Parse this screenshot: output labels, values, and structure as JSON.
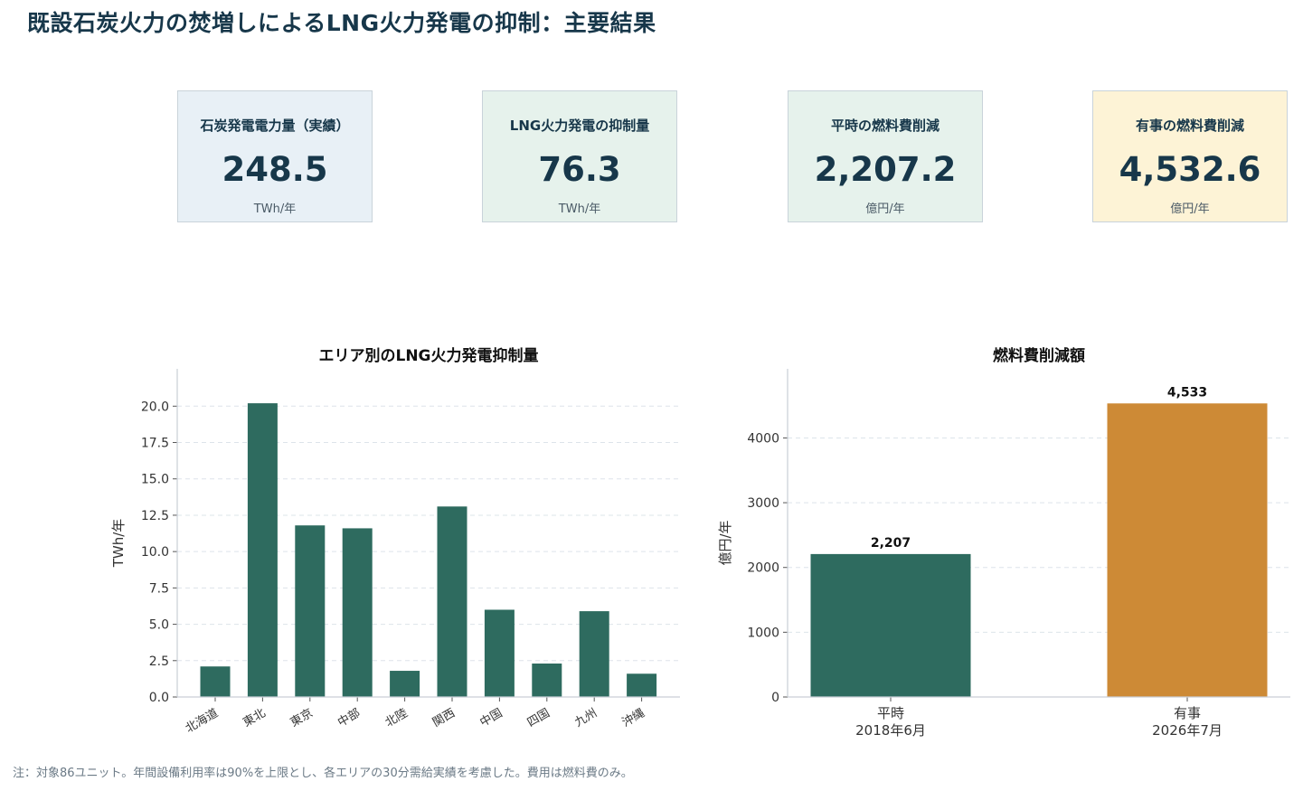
{
  "title": "既設石炭火力の焚増しによるLNG火力発電の抑制：主要結果",
  "cards": [
    {
      "label": "石炭発電電力量（実績）",
      "value": "248.5",
      "unit": "TWh/年",
      "bg": "#e8f0f6"
    },
    {
      "label": "LNG火力発電の抑制量",
      "value": "76.3",
      "unit": "TWh/年",
      "bg": "#e6f2ec"
    },
    {
      "label": "平時の燃料費削減",
      "value": "2,207.2",
      "unit": "億円/年",
      "bg": "#e6f2ec"
    },
    {
      "label": "有事の燃料費削減",
      "value": "4,532.6",
      "unit": "億円/年",
      "bg": "#fdf3d6"
    }
  ],
  "chart_data": [
    {
      "type": "bar",
      "title": "エリア別のLNG火力発電抑制量",
      "ylabel": "TWh/年",
      "xlabel": "",
      "categories": [
        "北海道",
        "東北",
        "東京",
        "中部",
        "北陸",
        "関西",
        "中国",
        "四国",
        "九州",
        "沖縄"
      ],
      "values": [
        2.1,
        20.2,
        11.8,
        11.6,
        1.8,
        13.1,
        6.0,
        2.3,
        5.9,
        1.6
      ],
      "ylim": [
        0,
        21.2
      ],
      "yticks": [
        0.0,
        2.5,
        5.0,
        7.5,
        10.0,
        12.5,
        15.0,
        17.5,
        20.0
      ],
      "ytick_labels": [
        "0.0",
        "2.5",
        "5.0",
        "7.5",
        "10.0",
        "12.5",
        "15.0",
        "17.5",
        "20.0"
      ],
      "grid": true,
      "color": "#2e6b5f"
    },
    {
      "type": "bar",
      "title": "燃料費削減額",
      "ylabel": "億円/年",
      "xlabel": "",
      "categories": [
        [
          "平時",
          "2018年6月"
        ],
        [
          "有事",
          "2026年7月"
        ]
      ],
      "values": [
        2207,
        4533
      ],
      "data_labels": [
        "2,207",
        "4,533"
      ],
      "ylim": [
        0,
        4760
      ],
      "yticks": [
        0,
        1000,
        2000,
        3000,
        4000
      ],
      "ytick_labels": [
        "0",
        "1000",
        "2000",
        "3000",
        "4000"
      ],
      "grid": true,
      "colors": [
        "#2e6b5f",
        "#cd8a36"
      ]
    }
  ],
  "footnote": "注：対象86ユニット。年間設備利用率は90%を上限とし、各エリアの30分需給実績を考慮した。費用は燃料費のみ。"
}
